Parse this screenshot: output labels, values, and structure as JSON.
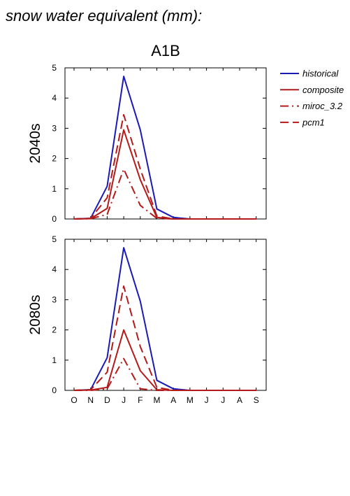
{
  "figure": {
    "title": "snow water equivalent (mm):",
    "scenario": "A1B"
  },
  "legend": [
    {
      "name": "historical",
      "color": "#1a1ab4",
      "dash": "solid"
    },
    {
      "name": "composite",
      "color": "#b41a1a",
      "dash": "solid"
    },
    {
      "name": "miroc_3.2",
      "color": "#b41a1a",
      "dash": "dashdot"
    },
    {
      "name": "pcm1",
      "color": "#b41a1a",
      "dash": "dash"
    }
  ],
  "chart_data": [
    {
      "type": "line",
      "row_label": "2040s",
      "categories": [
        "O",
        "N",
        "D",
        "J",
        "F",
        "M",
        "A",
        "M",
        "J",
        "J",
        "A",
        "S"
      ],
      "ylim": [
        0,
        5
      ],
      "yticks": [
        0,
        1,
        2,
        3,
        4,
        5
      ],
      "series": [
        {
          "name": "historical",
          "values": [
            0,
            0.02,
            1.08,
            4.72,
            2.95,
            0.33,
            0.05,
            0.0,
            0,
            0,
            0,
            0
          ]
        },
        {
          "name": "composite",
          "values": [
            0,
            0.01,
            0.35,
            2.95,
            1.3,
            0.05,
            0.0,
            0,
            0,
            0,
            0,
            0
          ]
        },
        {
          "name": "miroc_3.2",
          "values": [
            0,
            0.01,
            0.15,
            1.65,
            0.45,
            0.02,
            0.0,
            0,
            0,
            0,
            0,
            0
          ]
        },
        {
          "name": "pcm1",
          "values": [
            0,
            0.02,
            0.7,
            3.45,
            1.65,
            0.1,
            0.0,
            0,
            0,
            0,
            0,
            0
          ]
        }
      ]
    },
    {
      "type": "line",
      "row_label": "2080s",
      "categories": [
        "O",
        "N",
        "D",
        "J",
        "F",
        "M",
        "A",
        "M",
        "J",
        "J",
        "A",
        "S"
      ],
      "ylim": [
        0,
        5
      ],
      "yticks": [
        0,
        1,
        2,
        3,
        4,
        5
      ],
      "series": [
        {
          "name": "historical",
          "values": [
            0,
            0.02,
            1.08,
            4.72,
            2.95,
            0.33,
            0.05,
            0.0,
            0,
            0,
            0,
            0
          ]
        },
        {
          "name": "composite",
          "values": [
            0,
            0.01,
            0.1,
            2.0,
            0.65,
            0.02,
            0.0,
            0,
            0,
            0,
            0,
            0
          ]
        },
        {
          "name": "miroc_3.2",
          "values": [
            0,
            0.0,
            0.05,
            1.05,
            0.05,
            0.0,
            0.0,
            0,
            0,
            0,
            0,
            0
          ]
        },
        {
          "name": "pcm1",
          "values": [
            0,
            0.02,
            0.6,
            3.45,
            1.45,
            0.1,
            0.0,
            0,
            0,
            0,
            0,
            0
          ]
        }
      ]
    }
  ]
}
